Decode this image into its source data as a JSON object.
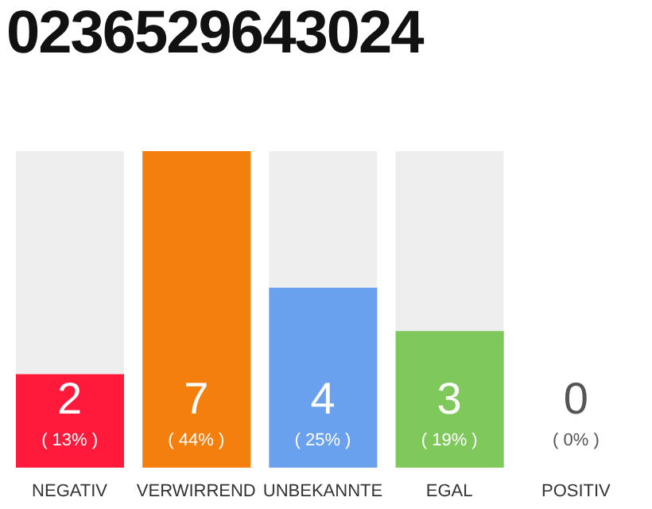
{
  "chart_data": {
    "type": "bar",
    "title": "0236529643024",
    "categories": [
      "NEGATIV",
      "VERWIRREND",
      "UNBEKANNTE",
      "EGAL",
      "POSITIV"
    ],
    "values": [
      13,
      44,
      25,
      19,
      0
    ],
    "value_labels": [
      "( 13% )",
      "( 44% )",
      "( 25% )",
      "( 19% )",
      "( 0% )"
    ],
    "colors": [
      "#ff1a3c",
      "#f57f0c",
      "#6aa1ef",
      "#7ec85c",
      "#d9d9d9"
    ],
    "annotations": [
      "2",
      "7",
      "4",
      "3",
      "0"
    ],
    "tick_labels": "x"
  }
}
